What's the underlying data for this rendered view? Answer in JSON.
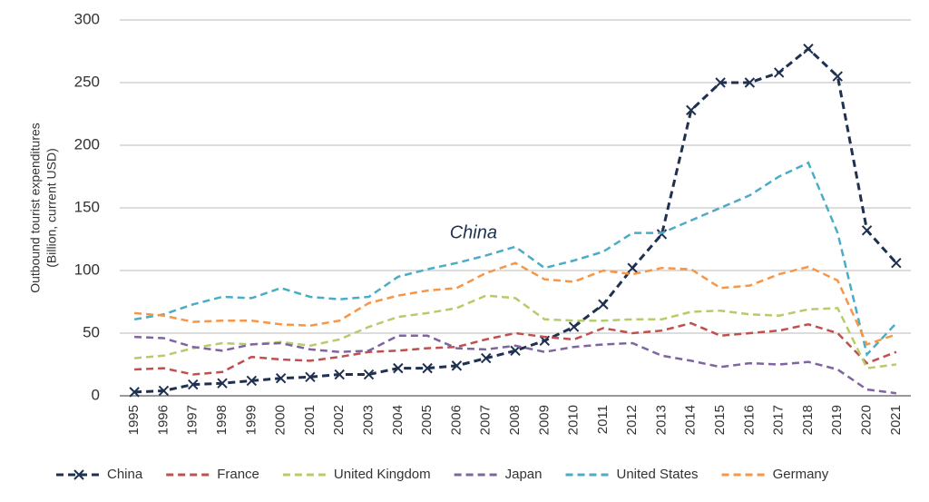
{
  "chart_data": {
    "type": "line",
    "y_label": [
      "Outbound tourist expenditures",
      "(Billion, current USD)"
    ],
    "annotation": {
      "text": "China",
      "series": 0,
      "index": 13
    },
    "categories": [
      "1995",
      "1996",
      "1997",
      "1998",
      "1999",
      "2000",
      "2001",
      "2002",
      "2003",
      "2004",
      "2005",
      "2006",
      "2007",
      "2008",
      "2009",
      "2010",
      "2011",
      "2012",
      "2013",
      "2014",
      "2015",
      "2016",
      "2017",
      "2018",
      "2019",
      "2020",
      "2021"
    ],
    "series": [
      {
        "name": "China",
        "color": "#1f3050",
        "marker": "x",
        "values": [
          3,
          4,
          9,
          10,
          12,
          14,
          15,
          17,
          17,
          22,
          22,
          24,
          30,
          36,
          44,
          55,
          73,
          102,
          129,
          228,
          250,
          250,
          258,
          277,
          255,
          132,
          106
        ]
      },
      {
        "name": "France",
        "color": "#c0504d",
        "values": [
          21,
          22,
          17,
          19,
          31,
          29,
          28,
          31,
          35,
          36,
          38,
          39,
          45,
          50,
          47,
          45,
          54,
          50,
          52,
          58,
          48,
          50,
          52,
          57,
          50,
          26,
          35
        ]
      },
      {
        "name": "United Kingdom",
        "color": "#b5cc6a",
        "values": [
          30,
          32,
          38,
          42,
          41,
          43,
          40,
          45,
          55,
          63,
          66,
          70,
          80,
          78,
          61,
          60,
          60,
          61,
          61,
          67,
          68,
          65,
          64,
          69,
          70,
          22,
          25
        ]
      },
      {
        "name": "Japan",
        "color": "#8064a2",
        "values": [
          47,
          46,
          39,
          36,
          41,
          42,
          37,
          35,
          36,
          48,
          48,
          38,
          37,
          40,
          35,
          39,
          41,
          42,
          32,
          28,
          23,
          26,
          25,
          27,
          21,
          5,
          2
        ]
      },
      {
        "name": "United States",
        "color": "#4bacc6",
        "values": [
          61,
          65,
          73,
          79,
          78,
          86,
          79,
          77,
          79,
          95,
          101,
          106,
          112,
          119,
          102,
          108,
          115,
          130,
          130,
          140,
          150,
          160,
          175,
          186,
          130,
          33,
          58
        ]
      },
      {
        "name": "Germany",
        "color": "#f79646",
        "values": [
          66,
          64,
          59,
          60,
          60,
          57,
          56,
          60,
          74,
          80,
          84,
          86,
          98,
          106,
          93,
          91,
          100,
          97,
          102,
          101,
          86,
          88,
          97,
          103,
          92,
          41,
          49
        ]
      }
    ],
    "ylim": [
      0,
      300
    ],
    "yticks": [
      0,
      50,
      100,
      150,
      200,
      250,
      300
    ],
    "grid": true,
    "legend": "bottom"
  }
}
